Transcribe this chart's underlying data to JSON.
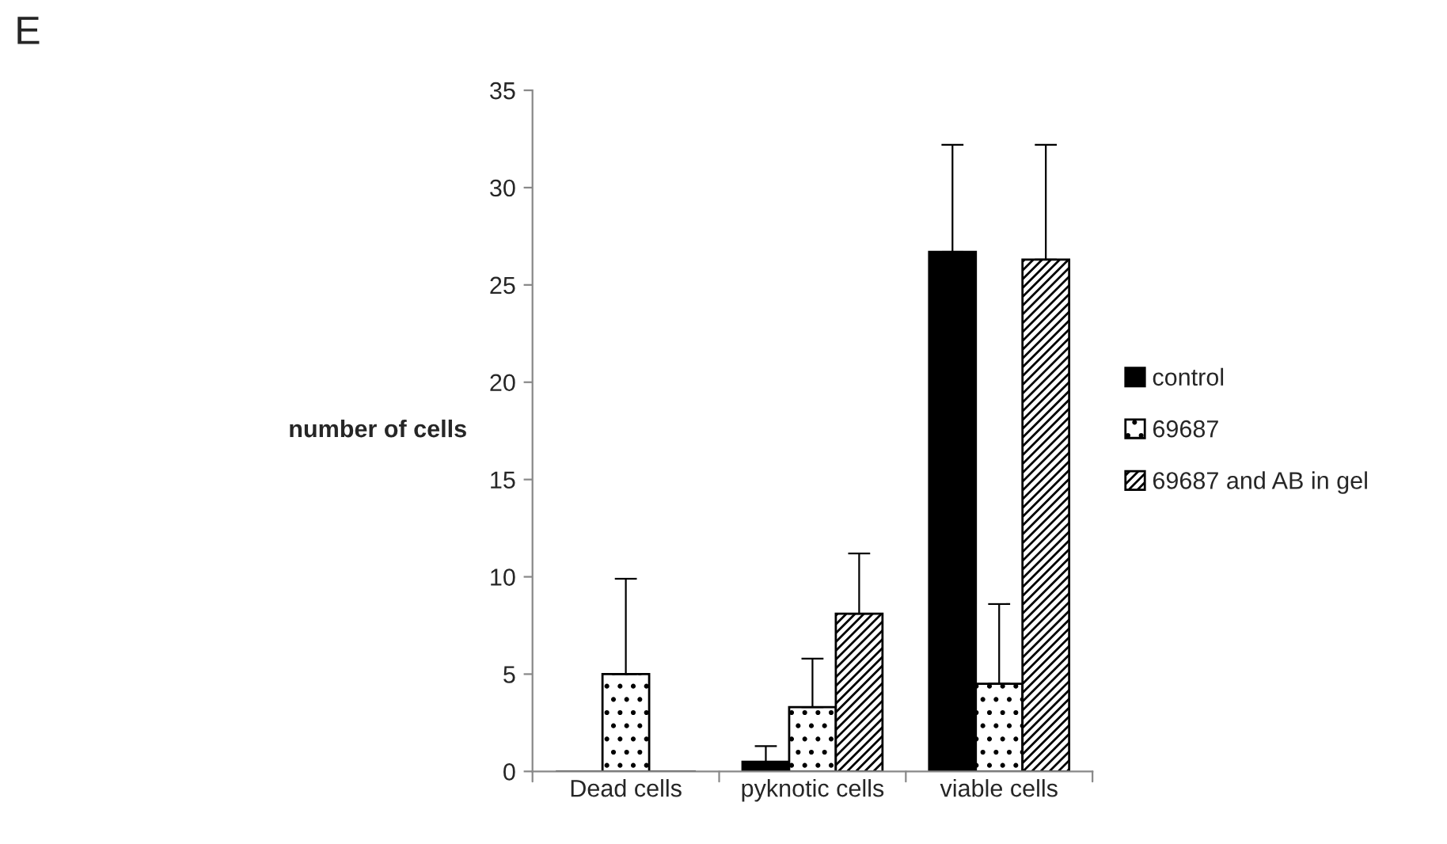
{
  "chart_data": {
    "type": "bar",
    "ylabel": "number of cells",
    "categories": [
      "Dead cells",
      "pyknotic cells",
      "viable cells"
    ],
    "series": [
      {
        "name": "control",
        "color": "#000000",
        "values": [
          0,
          0.5,
          26.7
        ],
        "errors": [
          null,
          [
            0.5,
            1.3
          ],
          [
            26.7,
            32.2
          ]
        ]
      },
      {
        "name": "69687",
        "color": "#000000",
        "values": [
          5,
          3.3,
          4.5
        ],
        "errors": [
          [
            5,
            9.9
          ],
          [
            3.3,
            5.8
          ],
          [
            4.5,
            8.6
          ]
        ]
      },
      {
        "name": "69687 and AB in gel",
        "color": "#000000",
        "values": [
          0,
          8.1,
          26.3
        ],
        "errors": [
          null,
          [
            8.1,
            11.2
          ],
          [
            26.3,
            32.2
          ]
        ]
      }
    ],
    "ylim": [
      0,
      35
    ],
    "yticks": [
      0,
      5,
      10,
      15,
      20,
      25,
      30,
      35
    ],
    "legend": "right",
    "grid": false,
    "annotations": [
      "E"
    ]
  }
}
